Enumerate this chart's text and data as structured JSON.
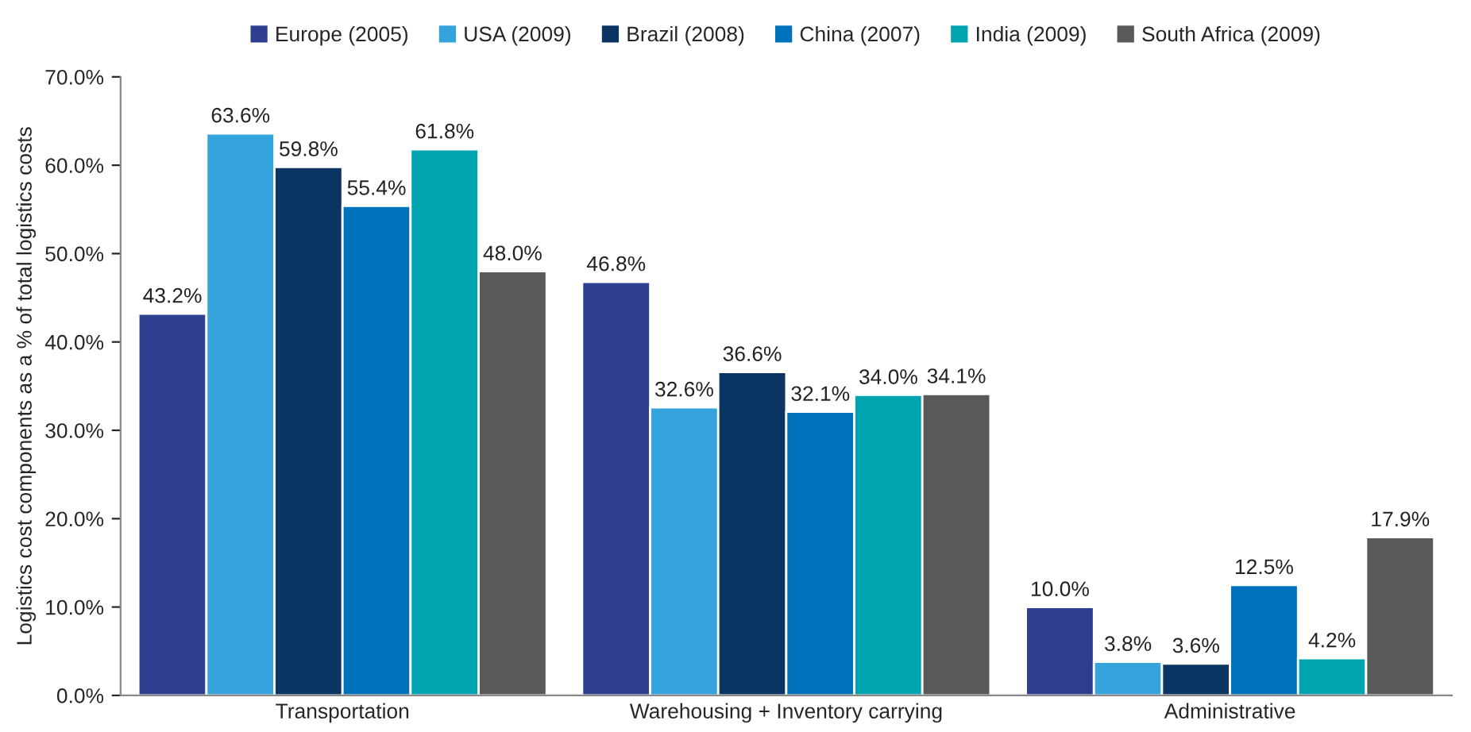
{
  "chart_data": {
    "type": "bar",
    "ylabel": "Logistics cost components as a % of total logistics costs",
    "categories": [
      "Transportation",
      "Warehousing + Inventory carrying",
      "Administrative"
    ],
    "series": [
      {
        "name": "Europe (2005)",
        "color": "#2e3f8f",
        "values": [
          43.2,
          46.8,
          10.0
        ],
        "value_labels": [
          "43.2%",
          "46.8%",
          "10.0%"
        ]
      },
      {
        "name": "USA (2009)",
        "color": "#35a3dc",
        "values": [
          63.6,
          32.6,
          3.8
        ],
        "value_labels": [
          "63.6%",
          "32.6%",
          "3.8%"
        ]
      },
      {
        "name": "Brazil (2008)",
        "color": "#0a3563",
        "values": [
          59.8,
          36.6,
          3.6
        ],
        "value_labels": [
          "59.8%",
          "36.6%",
          "3.6%"
        ]
      },
      {
        "name": "China (2007)",
        "color": "#0072bc",
        "values": [
          55.4,
          32.1,
          12.5
        ],
        "value_labels": [
          "55.4%",
          "32.1%",
          "12.5%"
        ]
      },
      {
        "name": "India (2009)",
        "color": "#00a3b0",
        "values": [
          61.8,
          34.0,
          4.2
        ],
        "value_labels": [
          "61.8%",
          "34.0%",
          "4.2%"
        ]
      },
      {
        "name": "South Africa (2009)",
        "color": "#58595b",
        "values": [
          48.0,
          34.1,
          17.9
        ],
        "value_labels": [
          "48.0%",
          "34.1%",
          "17.9%"
        ]
      }
    ],
    "ylim": [
      0,
      70
    ],
    "yticks": [
      {
        "value": 0,
        "label": "0.0%"
      },
      {
        "value": 10,
        "label": "10.0%"
      },
      {
        "value": 20,
        "label": "20.0%"
      },
      {
        "value": 30,
        "label": "30.0%"
      },
      {
        "value": 40,
        "label": "40.0%"
      },
      {
        "value": 50,
        "label": "50.0%"
      },
      {
        "value": 60,
        "label": "60.0%"
      },
      {
        "value": 70,
        "label": "70.0%"
      }
    ],
    "grid": false,
    "legend": "top"
  }
}
